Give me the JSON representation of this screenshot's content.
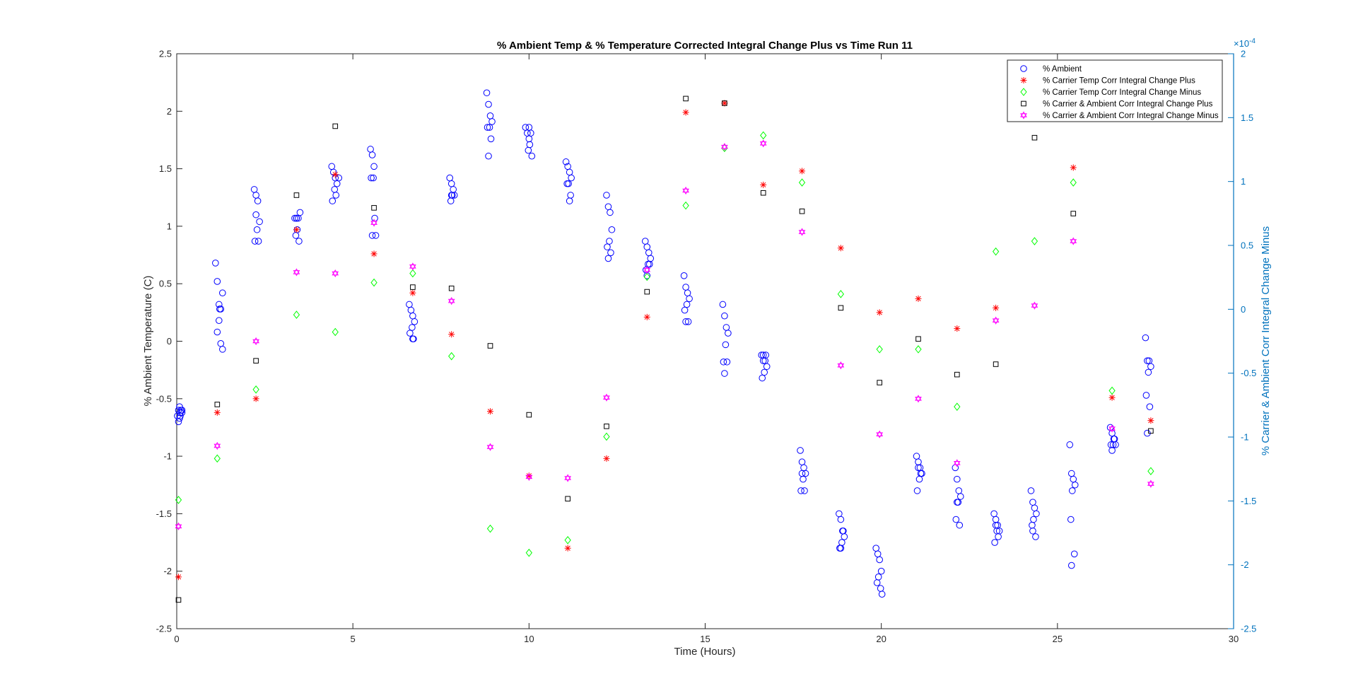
{
  "chart_data": {
    "type": "scatter",
    "title": "% Ambient Temp & % Temperature Corrected Integral Change Plus vs Time Run 11",
    "xlabel": "Time (Hours)",
    "ylabel_left": "% Ambient Temperature (C)",
    "ylabel_right": "% Carrier & Ambient Corr Integral Change Minus",
    "right_axis_exponent": "×10",
    "right_axis_exponent_power": "-4",
    "xlim": [
      0,
      30
    ],
    "ylim_left": [
      -2.5,
      2.5
    ],
    "ylim_right": [
      -2.5,
      2
    ],
    "x_ticks": [
      0,
      5,
      10,
      15,
      20,
      25,
      30
    ],
    "x_tick_labels": [
      "0",
      "5",
      "10",
      "15",
      "20",
      "25",
      "30"
    ],
    "y_left_ticks": [
      -2.5,
      -2,
      -1.5,
      -1,
      -0.5,
      0,
      0.5,
      1,
      1.5,
      2,
      2.5
    ],
    "y_left_tick_labels": [
      "-2.5",
      "-2",
      "-1.5",
      "-1",
      "-0.5",
      "0",
      "0.5",
      "1",
      "1.5",
      "2",
      "2.5"
    ],
    "y_right_ticks": [
      -2.5,
      -2,
      -1.5,
      -1,
      -0.5,
      0,
      0.5,
      1,
      1.5,
      2
    ],
    "y_right_tick_labels": [
      "-2.5",
      "-2",
      "-1.5",
      "-1",
      "-0.5",
      "0",
      "0.5",
      "1",
      "1.5",
      "2"
    ],
    "grid": false,
    "legend_position": "top-right",
    "colors": {
      "ambient": "#0000FF",
      "temp_plus": "#FF0000",
      "temp_minus": "#00FF00",
      "amb_plus": "#000000",
      "amb_minus": "#FF00FF",
      "right_axis": "#0072BD",
      "axis": "#262626"
    },
    "series": [
      {
        "name": "% Ambient",
        "marker": "circle",
        "color": "#0000FF",
        "x": [
          0.02,
          0.05,
          0.08,
          0.1,
          0.12,
          0.15,
          0.05,
          0.1,
          0.15,
          0.08,
          1.1,
          1.15,
          1.2,
          1.25,
          1.3,
          1.2,
          1.15,
          1.25,
          1.3,
          1.22,
          2.2,
          2.25,
          2.3,
          2.35,
          2.28,
          2.22,
          2.32,
          2.25,
          3.35,
          3.4,
          3.45,
          3.5,
          3.42,
          3.38,
          3.47,
          3.4,
          4.4,
          4.45,
          4.5,
          4.55,
          4.48,
          4.42,
          4.52,
          4.6,
          5.5,
          5.55,
          5.6,
          5.58,
          5.52,
          5.62,
          5.55,
          5.65,
          6.6,
          6.65,
          6.7,
          6.75,
          6.68,
          6.62,
          6.72,
          6.7,
          7.75,
          7.8,
          7.85,
          7.82,
          7.78,
          7.88,
          7.8,
          8.8,
          8.85,
          8.9,
          8.95,
          8.88,
          8.82,
          8.92,
          8.85,
          9.9,
          9.95,
          10.0,
          10.05,
          10.02,
          9.98,
          10.08,
          10.0,
          11.05,
          11.1,
          11.15,
          11.2,
          11.12,
          11.08,
          11.18,
          11.15,
          12.2,
          12.25,
          12.3,
          12.35,
          12.28,
          12.22,
          12.32,
          12.25,
          13.3,
          13.35,
          13.4,
          13.45,
          13.38,
          13.32,
          13.42,
          13.35,
          14.4,
          14.45,
          14.5,
          14.55,
          14.48,
          14.42,
          14.52,
          14.45,
          15.5,
          15.55,
          15.6,
          15.65,
          15.58,
          15.52,
          15.62,
          15.55,
          16.6,
          16.65,
          16.7,
          16.75,
          16.68,
          16.62,
          16.72,
          16.65,
          17.7,
          17.75,
          17.8,
          17.85,
          17.78,
          17.72,
          17.82,
          17.75,
          18.8,
          18.85,
          18.9,
          18.95,
          18.88,
          18.82,
          18.92,
          18.85,
          19.85,
          19.9,
          19.95,
          20.0,
          19.92,
          19.88,
          19.98,
          20.02,
          21.0,
          21.05,
          21.1,
          21.15,
          21.08,
          21.02,
          21.12,
          21.05,
          22.1,
          22.15,
          22.2,
          22.25,
          22.18,
          22.12,
          22.22,
          22.15,
          23.2,
          23.25,
          23.3,
          23.35,
          23.28,
          23.22,
          23.32,
          23.25,
          24.25,
          24.3,
          24.35,
          24.4,
          24.32,
          24.28,
          24.38,
          24.3,
          25.35,
          25.4,
          25.45,
          25.5,
          25.42,
          25.38,
          25.48,
          25.4,
          26.5,
          26.55,
          26.6,
          26.65,
          26.58,
          26.52,
          26.62,
          26.55,
          27.5,
          27.55,
          27.6,
          27.65,
          27.58,
          27.52,
          27.62,
          27.55
        ],
        "y": [
          -0.65,
          -0.6,
          -0.57,
          -0.62,
          -0.6,
          -0.62,
          -0.7,
          -0.65,
          -0.6,
          -0.67,
          0.68,
          0.52,
          0.32,
          0.28,
          0.42,
          0.18,
          0.08,
          -0.02,
          -0.07,
          0.28,
          1.32,
          1.27,
          1.22,
          1.04,
          0.97,
          0.87,
          0.87,
          1.1,
          1.07,
          1.07,
          1.07,
          1.12,
          0.97,
          0.92,
          0.87,
          1.07,
          1.52,
          1.47,
          1.42,
          1.37,
          1.32,
          1.22,
          1.27,
          1.42,
          1.67,
          1.62,
          1.52,
          1.42,
          1.42,
          1.07,
          0.92,
          0.92,
          0.32,
          0.27,
          0.22,
          0.17,
          0.12,
          0.07,
          0.02,
          0.02,
          1.42,
          1.37,
          1.32,
          1.27,
          1.22,
          1.27,
          1.27,
          2.16,
          2.06,
          1.96,
          1.91,
          1.86,
          1.86,
          1.76,
          1.61,
          1.86,
          1.81,
          1.76,
          1.81,
          1.71,
          1.66,
          1.61,
          1.86,
          1.56,
          1.52,
          1.47,
          1.42,
          1.37,
          1.37,
          1.27,
          1.22,
          1.27,
          1.17,
          1.12,
          0.97,
          0.87,
          0.82,
          0.77,
          0.72,
          0.87,
          0.82,
          0.77,
          0.72,
          0.67,
          0.62,
          0.67,
          0.57,
          0.57,
          0.47,
          0.42,
          0.37,
          0.32,
          0.27,
          0.17,
          0.17,
          0.32,
          0.22,
          0.12,
          0.07,
          -0.03,
          -0.18,
          -0.18,
          -0.28,
          -0.12,
          -0.12,
          -0.17,
          -0.22,
          -0.27,
          -0.32,
          -0.12,
          -0.17,
          -0.95,
          -1.05,
          -1.1,
          -1.15,
          -1.2,
          -1.3,
          -1.3,
          -1.15,
          -1.5,
          -1.55,
          -1.65,
          -1.7,
          -1.75,
          -1.8,
          -1.65,
          -1.8,
          -1.8,
          -1.85,
          -1.9,
          -2.0,
          -2.05,
          -2.1,
          -2.15,
          -2.2,
          -1.0,
          -1.05,
          -1.1,
          -1.15,
          -1.2,
          -1.3,
          -1.15,
          -1.1,
          -1.1,
          -1.2,
          -1.3,
          -1.35,
          -1.4,
          -1.55,
          -1.6,
          -1.4,
          -1.5,
          -1.55,
          -1.6,
          -1.65,
          -1.65,
          -1.75,
          -1.7,
          -1.6,
          -1.3,
          -1.4,
          -1.45,
          -1.5,
          -1.55,
          -1.6,
          -1.7,
          -1.65,
          -0.9,
          -1.15,
          -1.2,
          -1.25,
          -1.3,
          -1.55,
          -1.85,
          -1.95,
          -0.75,
          -0.8,
          -0.85,
          -0.9,
          -0.9,
          -0.9,
          -0.85,
          -0.95,
          0.03,
          -0.17,
          -0.17,
          -0.22,
          -0.27,
          -0.47,
          -0.57,
          -0.8
        ]
      },
      {
        "name": "% Carrier Temp Corr Integral Change Plus",
        "marker": "asterisk",
        "color": "#FF0000",
        "x": [
          0.05,
          1.15,
          2.25,
          3.4,
          4.5,
          5.6,
          6.7,
          7.8,
          8.9,
          10.0,
          11.1,
          12.2,
          13.35,
          14.45,
          15.55,
          16.65,
          17.75,
          18.85,
          19.95,
          21.05,
          22.15,
          23.25,
          25.45,
          26.55,
          27.65
        ],
        "y": [
          -2.05,
          -0.62,
          -0.5,
          0.97,
          1.45,
          0.76,
          0.42,
          0.06,
          -0.61,
          -1.17,
          -1.8,
          -1.02,
          0.21,
          1.99,
          2.07,
          1.36,
          1.48,
          0.81,
          0.25,
          0.37,
          0.11,
          0.29,
          1.51,
          -0.49,
          -0.69
        ]
      },
      {
        "name": "% Carrier Temp Corr Integral Change Minus",
        "marker": "diamond",
        "color": "#00FF00",
        "x": [
          0.05,
          1.15,
          2.25,
          3.4,
          4.5,
          5.6,
          6.7,
          7.8,
          8.9,
          10.0,
          11.1,
          12.2,
          13.35,
          14.45,
          15.55,
          16.65,
          17.75,
          18.85,
          19.95,
          21.05,
          22.15,
          23.25,
          24.35,
          25.45,
          26.55,
          27.65
        ],
        "y": [
          -1.38,
          -1.02,
          -0.42,
          0.23,
          0.08,
          0.51,
          0.59,
          -0.13,
          -1.63,
          -1.84,
          -1.73,
          -0.83,
          0.56,
          1.18,
          1.68,
          1.79,
          1.38,
          0.41,
          -0.07,
          -0.07,
          -0.57,
          0.78,
          0.87,
          1.38,
          -0.43,
          -1.13
        ]
      },
      {
        "name": "% Carrier & Ambient Corr Integral Change Plus",
        "marker": "square",
        "color": "#000000",
        "x": [
          0.05,
          1.15,
          2.25,
          3.4,
          4.5,
          5.6,
          6.7,
          7.8,
          8.9,
          10.0,
          11.1,
          12.2,
          13.35,
          14.45,
          15.55,
          16.65,
          17.75,
          18.85,
          19.95,
          21.05,
          22.15,
          23.25,
          24.35,
          25.45,
          27.65
        ],
        "y": [
          -2.25,
          -0.55,
          -0.17,
          1.27,
          1.87,
          1.16,
          0.47,
          0.46,
          -0.04,
          -0.64,
          -1.37,
          -0.74,
          0.43,
          2.11,
          2.07,
          1.29,
          1.13,
          0.29,
          -0.36,
          0.02,
          -0.29,
          -0.2,
          1.77,
          1.11,
          -0.78
        ]
      },
      {
        "name": "% Carrier & Ambient Corr Integral Change Minus",
        "marker": "hexagram",
        "color": "#FF00FF",
        "x": [
          0.05,
          1.15,
          2.25,
          3.4,
          4.5,
          5.6,
          6.7,
          7.8,
          8.9,
          10.0,
          11.1,
          12.2,
          13.35,
          14.45,
          15.55,
          16.65,
          17.75,
          18.85,
          19.95,
          21.05,
          22.15,
          23.25,
          24.35,
          25.45,
          26.55,
          27.65
        ],
        "y": [
          -1.61,
          -0.91,
          0.0,
          0.6,
          0.59,
          1.03,
          0.65,
          0.35,
          -0.92,
          -1.18,
          -1.19,
          -0.49,
          0.62,
          1.31,
          1.69,
          1.72,
          0.95,
          -0.21,
          -0.81,
          -0.5,
          -1.06,
          0.18,
          0.31,
          0.87,
          -0.76,
          -1.24
        ]
      }
    ]
  }
}
